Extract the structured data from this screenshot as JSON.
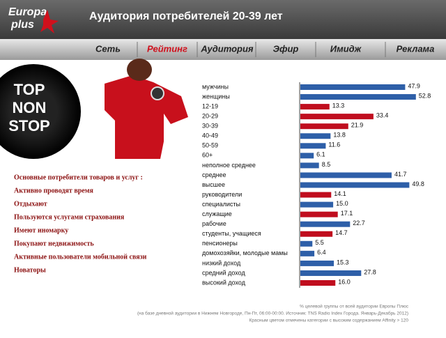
{
  "logo": [
    "Europa",
    "plus"
  ],
  "header": {
    "title": "Аудитория потребителей 20-39 лет"
  },
  "nav": [
    "Сеть",
    "Рейтинг",
    "Аудитория",
    "Эфир",
    "Имидж",
    "Реклама"
  ],
  "image_text": [
    "TOP",
    "NON",
    "STOP"
  ],
  "list": [
    "Основные потребители товаров и услуг :",
    "Активно проводят время",
    "Отдыхают",
    "Пользуются услугами страхования",
    "Имеют иномарку",
    "Покупают недвижимость",
    "Активные пользователи мобильной связи",
    "Новаторы"
  ],
  "chart_data": {
    "type": "bar",
    "orientation": "horizontal",
    "categories": [
      "мужчины",
      "женщины",
      "12-19",
      "20-29",
      "30-39",
      "40-49",
      "50-59",
      "60+",
      "неполное среднее",
      "среднее",
      "высшее",
      "руководители",
      "специалисты",
      "служащие",
      "рабочие",
      "студенты, учащиеся",
      "пенсионеры",
      "домохозяйки, молодые мамы",
      "низкий доход",
      "средний доход",
      "высокий доход"
    ],
    "values": [
      47.9,
      52.8,
      13.3,
      33.4,
      21.9,
      13.8,
      11.6,
      6.1,
      8.5,
      41.7,
      49.8,
      14.1,
      15.0,
      17.1,
      22.7,
      14.7,
      5.5,
      6.4,
      15.3,
      27.8,
      16.0
    ],
    "value_labels": [
      "47.9",
      "52.8",
      "13.3",
      "33.4",
      "21.9",
      "13.8",
      "11.6",
      "6.1",
      "8.5",
      "41.7",
      "49.8",
      "14.1",
      "15.0",
      "17.1",
      "22.7",
      "14.7",
      "5.5",
      "6.4",
      "15.3",
      "27.8",
      "16.0"
    ],
    "colors": [
      "#2e5fa8",
      "#2e5fa8",
      "#c00d1e",
      "#c00d1e",
      "#c00d1e",
      "#2e5fa8",
      "#2e5fa8",
      "#2e5fa8",
      "#2e5fa8",
      "#2e5fa8",
      "#2e5fa8",
      "#c00d1e",
      "#2e5fa8",
      "#c00d1e",
      "#2e5fa8",
      "#c00d1e",
      "#2e5fa8",
      "#2e5fa8",
      "#2e5fa8",
      "#2e5fa8",
      "#c00d1e"
    ]
  },
  "footnote": [
    "% целевой группы от всей аудитории Европы Плюс",
    "(на базе дневной аудитории в Нижнем Новгороде, Пн-Пт, 06:00-00:00. Источник: TNS Radio Index Города. Январь-Декабрь 2012)",
    "Красным цветом отмечены категории с высоким содержанием Affinity > 120"
  ]
}
